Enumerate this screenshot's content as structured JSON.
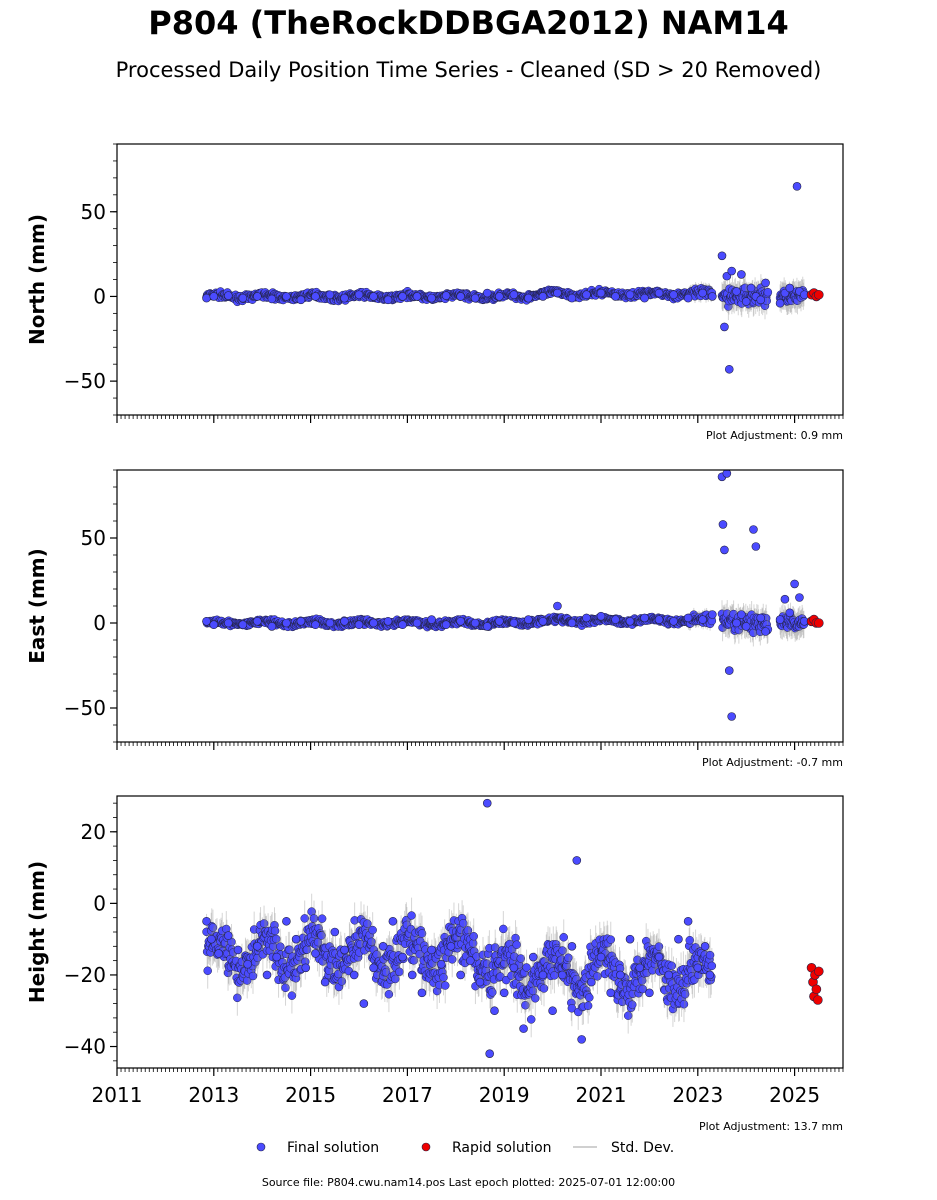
{
  "header": {
    "title": "P804 (TheRockDDBGA2012) NAM14",
    "subtitle": "Processed Daily Position Time Series - Cleaned (SD > 20 Removed)"
  },
  "footer": {
    "source_text": "Source file: P804.cwu.nam14.pos  Last epoch plotted: 2025-07-01 12:00:00"
  },
  "colors": {
    "final": "#4b4bff",
    "rapid": "#ee0000",
    "stddev": "#c0c0c0",
    "edge": "#222244"
  },
  "chart_data": [
    {
      "type": "scatter",
      "ylabel": "North (mm)",
      "adjustment_text": "Plot Adjustment: 0.9 mm",
      "xlim": [
        2011,
        2026
      ],
      "ylim": [
        -70,
        90
      ],
      "yticks": [
        -50,
        0,
        50
      ],
      "ytick_labels": [
        "−50",
        "0",
        "50"
      ],
      "grid": false,
      "series": [
        {
          "name": "Final solution",
          "x": [
            2012.85,
            2013.0,
            2013.3,
            2013.6,
            2013.9,
            2014.2,
            2014.5,
            2014.8,
            2015.1,
            2015.4,
            2015.7,
            2016.0,
            2016.3,
            2016.6,
            2016.9,
            2017.2,
            2017.5,
            2017.8,
            2018.1,
            2018.4,
            2018.65,
            2018.9,
            2019.2,
            2019.5,
            2019.8,
            2020.1,
            2020.4,
            2020.7,
            2021.0,
            2021.3,
            2021.6,
            2021.9,
            2022.2,
            2022.5,
            2022.8,
            2023.1,
            2023.3,
            2023.5,
            2023.55,
            2023.6,
            2023.65,
            2023.7,
            2023.8,
            2023.9,
            2024.0,
            2024.1,
            2024.2,
            2024.3,
            2024.4,
            2024.7,
            2024.8,
            2024.9,
            2025.05,
            2025.1,
            2025.2
          ],
          "y": [
            -1,
            0,
            0.5,
            -1,
            0,
            -1.5,
            0,
            -2,
            0,
            1,
            -1,
            1,
            0,
            -2,
            0,
            0,
            -1,
            0.5,
            0,
            -1,
            2,
            0,
            1,
            -1,
            0,
            2,
            -1,
            1,
            2,
            0,
            1,
            -1,
            2,
            1,
            -1,
            2,
            0,
            24,
            -18,
            12,
            -43,
            15,
            3,
            13,
            -3,
            5,
            0,
            -2,
            8,
            -4,
            2,
            5,
            65,
            3,
            1
          ]
        },
        {
          "name": "Rapid solution",
          "x": [
            2025.35,
            2025.4,
            2025.45,
            2025.5
          ],
          "y": [
            1,
            2,
            0,
            1
          ]
        }
      ],
      "legend": [
        "Final solution",
        "Rapid solution",
        "Std. Dev."
      ]
    },
    {
      "type": "scatter",
      "ylabel": "East (mm)",
      "adjustment_text": "Plot Adjustment: -0.7 mm",
      "xlim": [
        2011,
        2026
      ],
      "ylim": [
        -70,
        90
      ],
      "yticks": [
        -50,
        0,
        50
      ],
      "ytick_labels": [
        "−50",
        "0",
        "50"
      ],
      "grid": false,
      "series": [
        {
          "name": "Final solution",
          "x": [
            2012.85,
            2013.0,
            2013.3,
            2013.6,
            2013.9,
            2014.2,
            2014.5,
            2014.8,
            2015.1,
            2015.4,
            2015.7,
            2016.0,
            2016.3,
            2016.6,
            2016.9,
            2017.2,
            2017.5,
            2017.8,
            2018.1,
            2018.4,
            2018.65,
            2018.9,
            2019.2,
            2019.5,
            2019.8,
            2020.1,
            2020.4,
            2020.7,
            2021.0,
            2021.3,
            2021.6,
            2021.9,
            2022.2,
            2022.5,
            2022.8,
            2023.1,
            2023.3,
            2023.5,
            2023.52,
            2023.55,
            2023.6,
            2023.65,
            2023.7,
            2023.8,
            2023.9,
            2024.0,
            2024.15,
            2024.2,
            2024.3,
            2024.4,
            2024.7,
            2024.8,
            2024.9,
            2025.0,
            2025.1,
            2025.2
          ],
          "y": [
            1,
            -1,
            0,
            -1,
            1,
            -2,
            0,
            1,
            -1,
            0,
            1,
            -1,
            0,
            1,
            -1,
            0,
            2,
            -1,
            1,
            0,
            -2,
            1,
            0,
            2,
            1,
            10,
            0,
            3,
            4,
            2,
            1,
            3,
            2,
            1,
            3,
            2,
            5,
            86,
            58,
            43,
            88,
            -28,
            -55,
            0,
            5,
            -2,
            55,
            45,
            3,
            -5,
            2,
            14,
            6,
            23,
            15,
            1
          ]
        },
        {
          "name": "Rapid solution",
          "x": [
            2025.35,
            2025.4,
            2025.45,
            2025.5
          ],
          "y": [
            1,
            2,
            0,
            0
          ]
        }
      ],
      "legend": [
        "Final solution",
        "Rapid solution",
        "Std. Dev."
      ]
    },
    {
      "type": "scatter",
      "ylabel": "Height (mm)",
      "adjustment_text": "Plot Adjustment: 13.7 mm",
      "xlim": [
        2011,
        2026
      ],
      "ylim": [
        -46,
        30
      ],
      "yticks": [
        -40,
        -20,
        0,
        20
      ],
      "ytick_labels": [
        "−40",
        "−20",
        "0",
        "20"
      ],
      "xticks": [
        2011,
        2013,
        2015,
        2017,
        2019,
        2021,
        2023,
        2025
      ],
      "xtick_labels": [
        "2011",
        "2013",
        "2015",
        "2017",
        "2019",
        "2021",
        "2023",
        "2025"
      ],
      "grid": false,
      "series": [
        {
          "name": "Final solution",
          "x": [
            2012.85,
            2012.95,
            2013.1,
            2013.3,
            2013.5,
            2013.7,
            2013.9,
            2014.1,
            2014.3,
            2014.5,
            2014.7,
            2014.9,
            2015.1,
            2015.3,
            2015.5,
            2015.7,
            2015.9,
            2016.1,
            2016.3,
            2016.5,
            2016.7,
            2016.9,
            2017.1,
            2017.3,
            2017.5,
            2017.7,
            2017.9,
            2018.1,
            2018.3,
            2018.5,
            2018.65,
            2018.7,
            2018.8,
            2019.0,
            2019.2,
            2019.4,
            2019.6,
            2019.8,
            2020.0,
            2020.2,
            2020.4,
            2020.5,
            2020.6,
            2020.8,
            2021.0,
            2021.2,
            2021.4,
            2021.6,
            2021.8,
            2022.0,
            2022.2,
            2022.4,
            2022.6,
            2022.8,
            2023.0,
            2023.15,
            2023.25
          ],
          "y": [
            -5,
            -10,
            -14,
            -9,
            -13,
            -17,
            -12,
            -20,
            -15,
            -5,
            -10,
            -18,
            -14,
            -22,
            -8,
            -13,
            -20,
            -28,
            -18,
            -12,
            -5,
            -15,
            -20,
            -25,
            -13,
            -17,
            -12,
            -20,
            -16,
            -22,
            28,
            -42,
            -30,
            -25,
            -18,
            -35,
            -15,
            -20,
            -30,
            -20,
            -12,
            12,
            -38,
            -22,
            -15,
            -25,
            -20,
            -10,
            -18,
            -25,
            -15,
            -20,
            -10,
            -5,
            -18,
            -12,
            -20
          ]
        },
        {
          "name": "Rapid solution",
          "x": [
            2025.35,
            2025.38,
            2025.4,
            2025.42,
            2025.45,
            2025.48,
            2025.5
          ],
          "y": [
            -18,
            -22,
            -26,
            -20,
            -24,
            -27,
            -19
          ]
        }
      ],
      "legend": [
        "Final solution",
        "Rapid solution",
        "Std. Dev."
      ]
    }
  ]
}
